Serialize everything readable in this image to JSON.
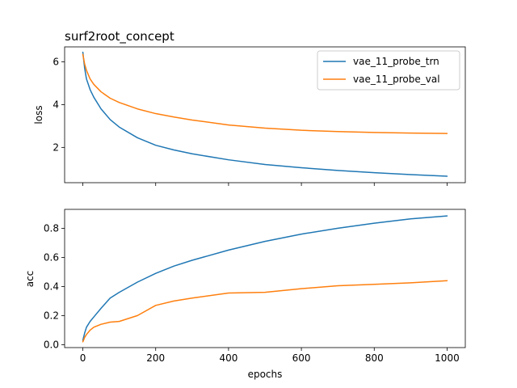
{
  "chart_data": [
    {
      "type": "line",
      "title": "surf2root_concept",
      "xlabel": "",
      "ylabel": "loss",
      "xlim": [
        -50,
        1050
      ],
      "ylim": [
        0.35,
        6.7
      ],
      "yticks": [
        2,
        4,
        6
      ],
      "xticks": [
        0,
        200,
        400,
        600,
        800,
        1000
      ],
      "show_xtick_labels": false,
      "grid": false,
      "legend": "top-right",
      "series": [
        {
          "name": "vae_11_probe_trn",
          "color": "#1f77b4",
          "x": [
            0,
            5,
            10,
            20,
            30,
            50,
            75,
            100,
            150,
            200,
            250,
            300,
            400,
            500,
            600,
            700,
            800,
            900,
            1000
          ],
          "y": [
            6.45,
            5.7,
            5.2,
            4.7,
            4.35,
            3.8,
            3.3,
            2.95,
            2.45,
            2.1,
            1.88,
            1.7,
            1.42,
            1.2,
            1.05,
            0.92,
            0.82,
            0.73,
            0.65
          ]
        },
        {
          "name": "vae_11_probe_val",
          "color": "#ff7f0e",
          "x": [
            0,
            5,
            10,
            20,
            30,
            50,
            75,
            100,
            150,
            200,
            250,
            300,
            400,
            500,
            600,
            700,
            800,
            900,
            1000
          ],
          "y": [
            6.35,
            5.9,
            5.6,
            5.2,
            4.95,
            4.6,
            4.3,
            4.1,
            3.8,
            3.58,
            3.42,
            3.28,
            3.05,
            2.9,
            2.8,
            2.74,
            2.7,
            2.67,
            2.65
          ]
        }
      ]
    },
    {
      "type": "line",
      "title": "",
      "xlabel": "epochs",
      "ylabel": "acc",
      "xlim": [
        -50,
        1050
      ],
      "ylim": [
        -0.02,
        0.93
      ],
      "yticks": [
        0.0,
        0.2,
        0.4,
        0.6,
        0.8
      ],
      "xticks": [
        0,
        200,
        400,
        600,
        800,
        1000
      ],
      "show_xtick_labels": true,
      "grid": false,
      "series": [
        {
          "name": "vae_11_probe_trn",
          "color": "#1f77b4",
          "x": [
            0,
            5,
            10,
            20,
            30,
            50,
            75,
            100,
            150,
            200,
            250,
            300,
            400,
            500,
            600,
            700,
            800,
            900,
            1000
          ],
          "y": [
            0.03,
            0.08,
            0.12,
            0.16,
            0.19,
            0.25,
            0.32,
            0.36,
            0.43,
            0.49,
            0.54,
            0.58,
            0.65,
            0.71,
            0.76,
            0.8,
            0.835,
            0.865,
            0.885
          ]
        },
        {
          "name": "vae_11_probe_val",
          "color": "#ff7f0e",
          "x": [
            0,
            5,
            10,
            20,
            30,
            50,
            75,
            100,
            150,
            200,
            250,
            300,
            400,
            500,
            600,
            700,
            800,
            900,
            1000
          ],
          "y": [
            0.02,
            0.05,
            0.07,
            0.1,
            0.12,
            0.14,
            0.155,
            0.16,
            0.2,
            0.27,
            0.3,
            0.32,
            0.355,
            0.36,
            0.385,
            0.405,
            0.415,
            0.425,
            0.44
          ]
        }
      ]
    }
  ]
}
